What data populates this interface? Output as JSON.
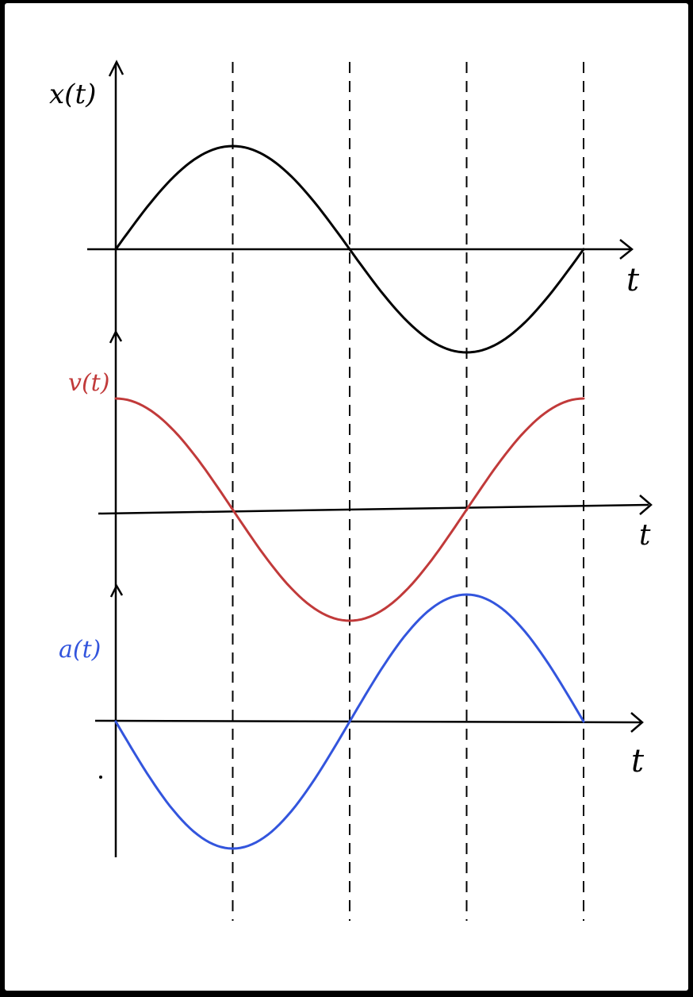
{
  "labels": {
    "x_plot": "x(t)",
    "v_plot": "v(t)",
    "a_plot": "a(t)",
    "t_axis": "t"
  },
  "colors": {
    "x_curve": "#000000",
    "v_curve": "#c13a3a",
    "a_curve": "#3355dd",
    "axes": "#000000",
    "guides": "#000000"
  },
  "chart_data": [
    {
      "type": "line",
      "series": [
        {
          "name": "x(t)",
          "function": "sin",
          "phase_quarter_periods": 0
        }
      ],
      "x_range_periods": [
        0,
        1
      ],
      "ylabel": "x(t)",
      "xlabel": "t"
    },
    {
      "type": "line",
      "series": [
        {
          "name": "v(t)",
          "function": "cos",
          "phase_quarter_periods": 1
        }
      ],
      "x_range_periods": [
        0,
        1
      ],
      "ylabel": "v(t)",
      "xlabel": "t"
    },
    {
      "type": "line",
      "series": [
        {
          "name": "a(t)",
          "function": "-sin",
          "phase_quarter_periods": 2
        }
      ],
      "x_range_periods": [
        0,
        1
      ],
      "ylabel": "a(t)",
      "xlabel": "t"
    }
  ],
  "guides_at_periods": [
    0.25,
    0.5,
    0.75,
    1.0
  ]
}
